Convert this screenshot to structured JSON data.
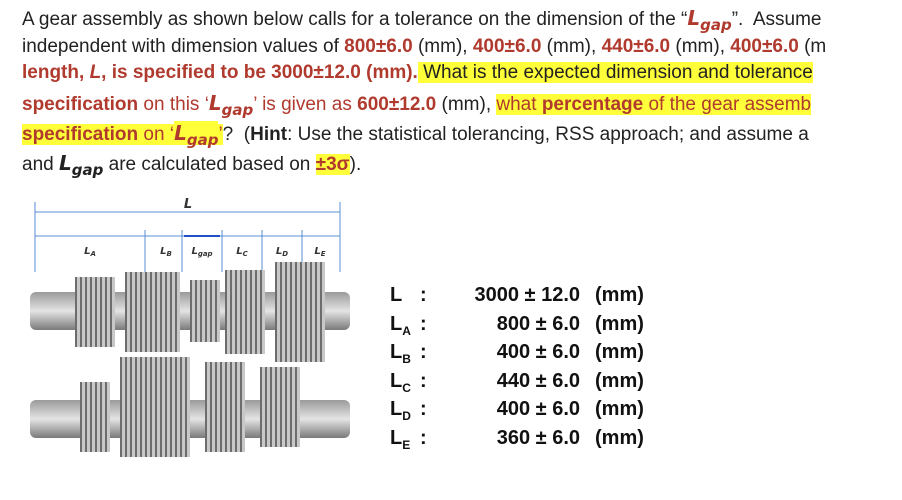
{
  "text": {
    "lines": [
      [
        "A gear assembly as shown below calls for a tolerance on the dimension of the “",
        {
          "main": "L",
          "sub": "gap"
        },
        "”.  Assume"
      ],
      [
        "independent with dimension values of ",
        "800±6.0",
        " (mm), ",
        "400±6.0",
        " (mm), ",
        "440±6.0",
        " (mm), ",
        "400±6.0",
        " (m"
      ],
      [
        "length, ",
        "L",
        ", is specified to be 3000±12.0 (mm).",
        " What is the expected dimension and tolerance"
      ],
      [
        "specification",
        " on this ‘",
        {
          "main": "L",
          "sub": "gap"
        },
        "’ is given as ",
        "600±12.0",
        " (mm), ",
        "what ",
        "percentage",
        " of the gear assemb"
      ],
      [
        "specification",
        " on ‘",
        {
          "main": "L",
          "sub": "gap"
        },
        "’",
        "?  (",
        "Hint",
        ": Use the statistical tolerancing, RSS approach; and assume a"
      ],
      [
        "and ",
        {
          "main": "L",
          "sub": "gap"
        },
        " are calculated based on ",
        "±3σ",
        ")."
      ]
    ]
  },
  "diagram": {
    "labels": {
      "total": "L",
      "a": {
        "main": "L",
        "sub": "A"
      },
      "b": {
        "main": "L",
        "sub": "B"
      },
      "gap": {
        "main": "L",
        "sub": "gap"
      },
      "c": {
        "main": "L",
        "sub": "C"
      },
      "d": {
        "main": "L",
        "sub": "D"
      },
      "e": {
        "main": "L",
        "sub": "E"
      }
    }
  },
  "table": {
    "rows": [
      {
        "symbol": "L",
        "sep": ":",
        "value": "3000 ± 12.0",
        "unit": "(mm)"
      },
      {
        "symbol": "L",
        "sub": "A",
        "sep": ":",
        "value": "800 ± 6.0",
        "unit": "(mm)"
      },
      {
        "symbol": "L",
        "sub": "B",
        "sep": ":",
        "value": "400 ± 6.0",
        "unit": "(mm)"
      },
      {
        "symbol": "L",
        "sub": "C",
        "sep": ":",
        "value": "440 ± 6.0",
        "unit": "(mm)"
      },
      {
        "symbol": "L",
        "sub": "D",
        "sep": ":",
        "value": "400 ± 6.0",
        "unit": "(mm)"
      },
      {
        "symbol": "L",
        "sub": "E",
        "sep": ":",
        "value": "360 ± 6.0",
        "unit": "(mm)"
      }
    ]
  }
}
